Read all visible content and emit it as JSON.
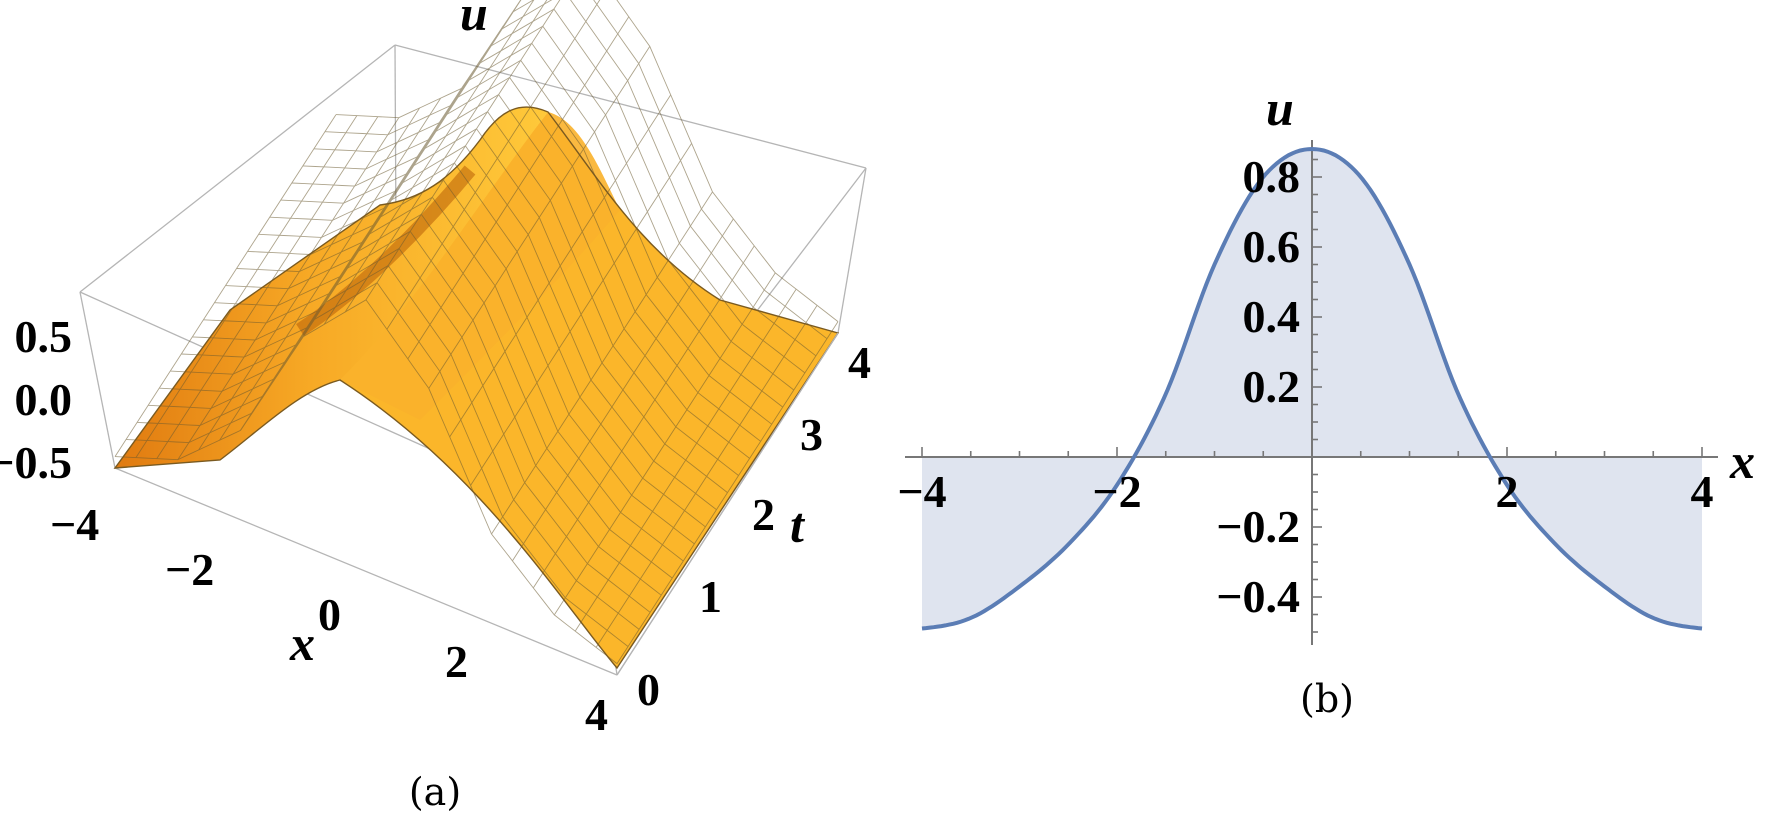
{
  "chart_data": [
    {
      "type": "surface",
      "caption": "(a)",
      "axis_labels": {
        "x": "x",
        "t": "t",
        "u": "u"
      },
      "x_range": [
        -4,
        4
      ],
      "t_range": [
        0,
        4
      ],
      "u_range": [
        -0.55,
        0.88
      ],
      "x_ticks": [
        "−4",
        "−2",
        "0",
        "2",
        "4"
      ],
      "t_ticks": [
        "0",
        "1",
        "2",
        "3",
        "4"
      ],
      "u_ticks": [
        "0.5",
        "0.0",
        "−0.5"
      ],
      "surface_color": "#f4a81c",
      "profile": {
        "x": [
          -4,
          -3,
          -2,
          -1,
          0,
          1,
          2,
          3,
          4
        ],
        "u": [
          -0.49,
          -0.37,
          -0.08,
          0.55,
          0.88,
          0.55,
          -0.08,
          -0.37,
          -0.49
        ]
      }
    },
    {
      "type": "area",
      "caption": "(b)",
      "xlabel": "x",
      "ylabel": "u",
      "xlim": [
        -4,
        4
      ],
      "ylim": [
        -0.55,
        0.95
      ],
      "x_ticks": [
        "−4",
        "−2",
        "2",
        "4"
      ],
      "y_ticks": [
        "0.8",
        "0.6",
        "0.4",
        "0.2",
        "−0.2",
        "−0.4"
      ],
      "line_color": "#5b7db5",
      "fill_color": "#dfe4ef",
      "series": [
        {
          "x": [
            -4,
            -3.5,
            -3,
            -2.5,
            -2,
            -1.5,
            -1,
            -0.5,
            0,
            0.5,
            1,
            1.5,
            2,
            2.5,
            3,
            3.5,
            4
          ],
          "y": [
            -0.49,
            -0.46,
            -0.37,
            -0.25,
            -0.08,
            0.18,
            0.55,
            0.8,
            0.88,
            0.8,
            0.55,
            0.18,
            -0.08,
            -0.25,
            -0.37,
            -0.46,
            -0.49
          ]
        }
      ]
    }
  ]
}
